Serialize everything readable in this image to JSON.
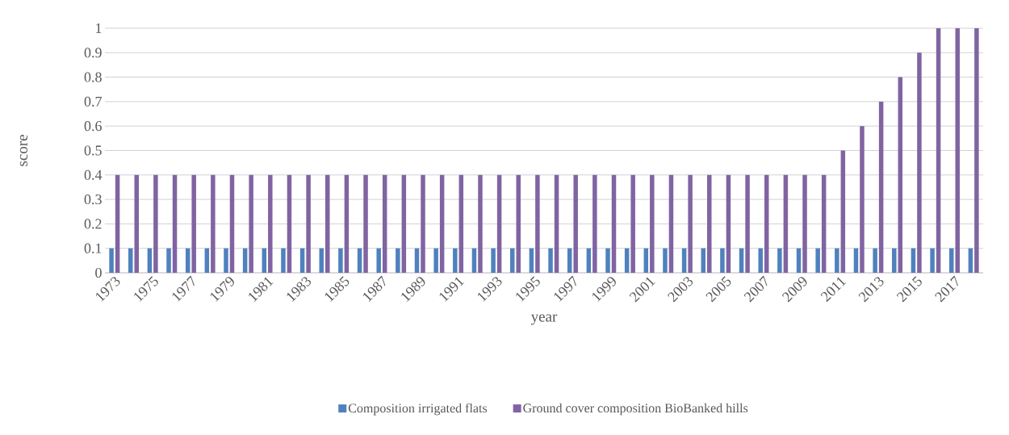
{
  "chart_data": {
    "type": "bar",
    "xlabel": "year",
    "ylabel": "score",
    "categories": [
      "1973",
      null,
      "1975",
      null,
      "1977",
      null,
      "1979",
      null,
      "1981",
      null,
      "1983",
      null,
      "1985",
      null,
      "1987",
      null,
      "1989",
      null,
      "1991",
      null,
      "1993",
      null,
      "1995",
      null,
      "1997",
      null,
      "1999",
      null,
      "2001",
      null,
      "2003",
      null,
      "2005",
      null,
      "2007",
      null,
      "2009",
      null,
      "2011",
      null,
      "2013",
      null,
      "2015",
      null,
      "2017",
      null
    ],
    "series": [
      {
        "name": "Composition irrigated flats",
        "color": "#4f81bd",
        "values": [
          0.1,
          0.1,
          0.1,
          0.1,
          0.1,
          0.1,
          0.1,
          0.1,
          0.1,
          0.1,
          0.1,
          0.1,
          0.1,
          0.1,
          0.1,
          0.1,
          0.1,
          0.1,
          0.1,
          0.1,
          0.1,
          0.1,
          0.1,
          0.1,
          0.1,
          0.1,
          0.1,
          0.1,
          0.1,
          0.1,
          0.1,
          0.1,
          0.1,
          0.1,
          0.1,
          0.1,
          0.1,
          0.1,
          0.1,
          0.1,
          0.1,
          0.1,
          0.1,
          0.1,
          0.1,
          0.1
        ]
      },
      {
        "name": "Ground cover composition BioBanked hills",
        "color": "#8064a2",
        "values": [
          0.4,
          0.4,
          0.4,
          0.4,
          0.4,
          0.4,
          0.4,
          0.4,
          0.4,
          0.4,
          0.4,
          0.4,
          0.4,
          0.4,
          0.4,
          0.4,
          0.4,
          0.4,
          0.4,
          0.4,
          0.4,
          0.4,
          0.4,
          0.4,
          0.4,
          0.4,
          0.4,
          0.4,
          0.4,
          0.4,
          0.4,
          0.4,
          0.4,
          0.4,
          0.4,
          0.4,
          0.4,
          0.4,
          0.5,
          0.6,
          0.7,
          0.8,
          0.9,
          1,
          1,
          1
        ]
      }
    ],
    "ylim": [
      0,
      1
    ],
    "yticks": [
      0,
      0.1,
      0.2,
      0.3,
      0.4,
      0.5,
      0.6,
      0.7,
      0.8,
      0.9,
      1
    ],
    "grid": "y",
    "legend": "bottom"
  }
}
